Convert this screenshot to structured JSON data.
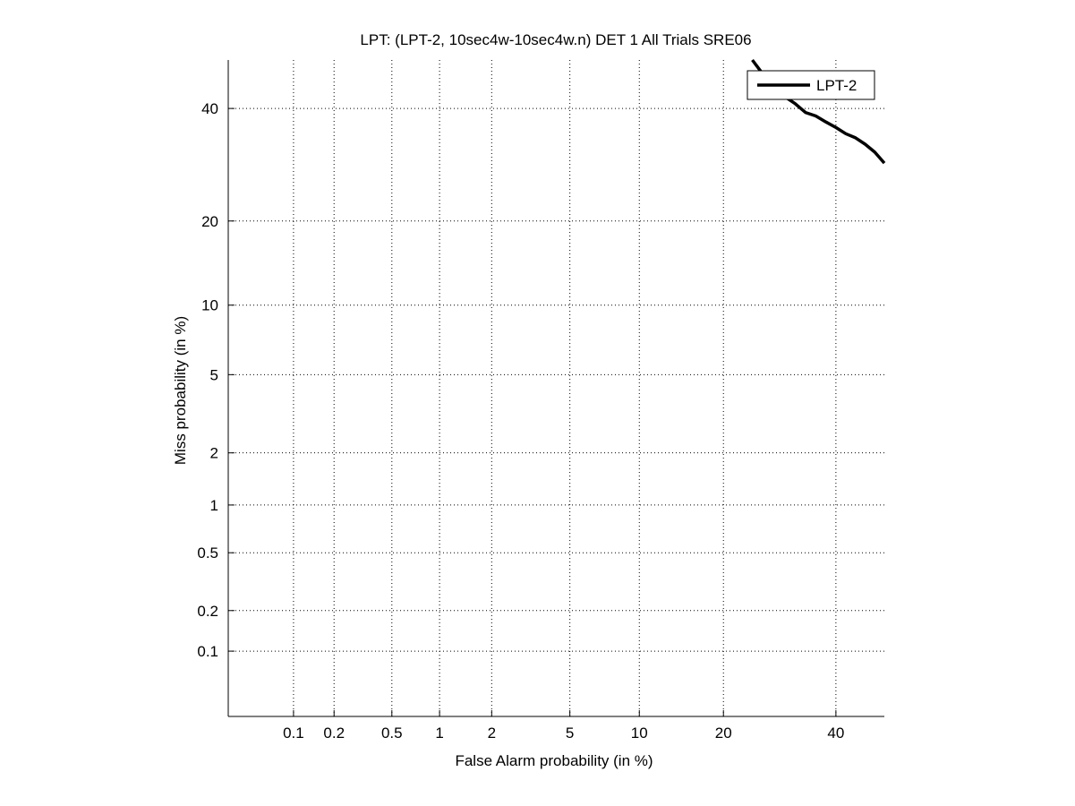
{
  "chart_data": {
    "type": "line",
    "scale": "normal-deviate (DET)",
    "title": "LPT: (LPT-2, 10sec4w-10sec4w.n) DET 1 All Trials SRE06",
    "xlabel": "False Alarm probability (in %)",
    "ylabel": "Miss probability (in %)",
    "xlim": [
      0.03,
      50
    ],
    "ylim": [
      0.03,
      50
    ],
    "xticks": [
      0.1,
      0.2,
      0.5,
      1,
      2,
      5,
      10,
      20,
      40
    ],
    "yticks": [
      0.1,
      0.2,
      0.5,
      1,
      2,
      5,
      10,
      20,
      40
    ],
    "xtick_labels": [
      "0.1",
      "0.2",
      "0.5",
      "1",
      "2",
      "5",
      "10",
      "20",
      "40"
    ],
    "ytick_labels": [
      "0.1",
      "0.2",
      "0.5",
      "1",
      "2",
      "5",
      "10",
      "20",
      "40"
    ],
    "grid": true,
    "legend": {
      "position": "top-right",
      "entries": [
        "LPT-2"
      ]
    },
    "series": [
      {
        "name": "LPT-2",
        "color": "#000000",
        "points": [
          [
            24.5,
            50
          ],
          [
            26,
            47.5
          ],
          [
            28,
            44.5
          ],
          [
            30,
            42.5
          ],
          [
            32,
            41
          ],
          [
            34,
            39.2
          ],
          [
            36,
            38.5
          ],
          [
            38,
            37.3
          ],
          [
            40,
            36.2
          ],
          [
            42,
            35
          ],
          [
            44,
            34.2
          ],
          [
            46,
            33
          ],
          [
            48,
            31.5
          ],
          [
            50,
            29.5
          ]
        ]
      }
    ]
  }
}
